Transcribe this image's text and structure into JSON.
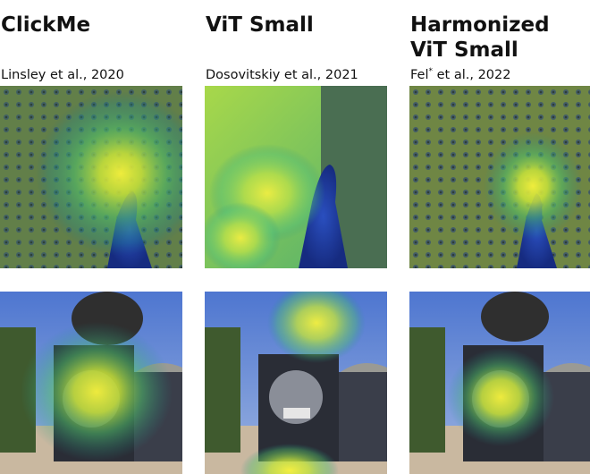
{
  "columns": [
    {
      "title_lines": [
        "ClickMe"
      ],
      "citation": {
        "authors": "Linsley et al., 2020",
        "sup": ""
      }
    },
    {
      "title_lines": [
        "ViT Small"
      ],
      "citation": {
        "authors": "Dosovitskiy et al., 2021",
        "sup": ""
      }
    },
    {
      "title_lines": [
        "Harmonized",
        "ViT Small"
      ],
      "citation": {
        "authors_prefix": "Fel",
        "sup": "*",
        "authors_suffix": " et al., 2022"
      }
    }
  ],
  "images": {
    "peacock": "peacock-photo",
    "train": "steam-locomotive-photo"
  },
  "colors": {
    "heat_peak": "#f5f03a",
    "heat_mid": "#5ec95c",
    "heat_low": "#1f8f8a",
    "peacock_body": "#1e3fa8",
    "sky": "#5d84d6",
    "smoke": "#2f2f2f"
  }
}
